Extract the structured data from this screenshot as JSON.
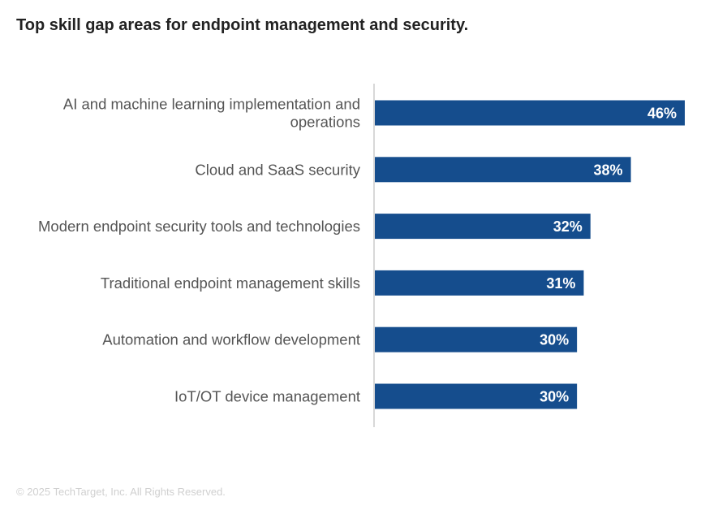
{
  "title": "Top skill gap areas for endpoint management and security.",
  "footer": "© 2025 TechTarget, Inc. All Rights Reserved.",
  "colors": {
    "bar": "#154d8d",
    "axis": "#cccccc",
    "label": "#555555"
  },
  "chart_data": {
    "type": "bar",
    "orientation": "horizontal",
    "title": "Top skill gap areas for endpoint management and security.",
    "categories": [
      "AI and machine learning implementation and operations",
      "Cloud and SaaS security",
      "Modern endpoint security tools and technologies",
      "Traditional endpoint management skills",
      "Automation and workflow development",
      "IoT/OT device management"
    ],
    "category_lines": [
      [
        "AI and machine learning implementation and",
        "operations"
      ],
      [
        "Cloud and SaaS security"
      ],
      [
        "Modern endpoint security tools and technologies"
      ],
      [
        "Traditional endpoint management skills"
      ],
      [
        "Automation and workflow development"
      ],
      [
        "IoT/OT device management"
      ]
    ],
    "values": [
      46,
      38,
      32,
      31,
      30,
      30
    ],
    "value_labels": [
      "46%",
      "38%",
      "32%",
      "31%",
      "30%",
      "30%"
    ],
    "unit": "%",
    "xlim": [
      0,
      46
    ],
    "grid": false,
    "legend": "none"
  }
}
